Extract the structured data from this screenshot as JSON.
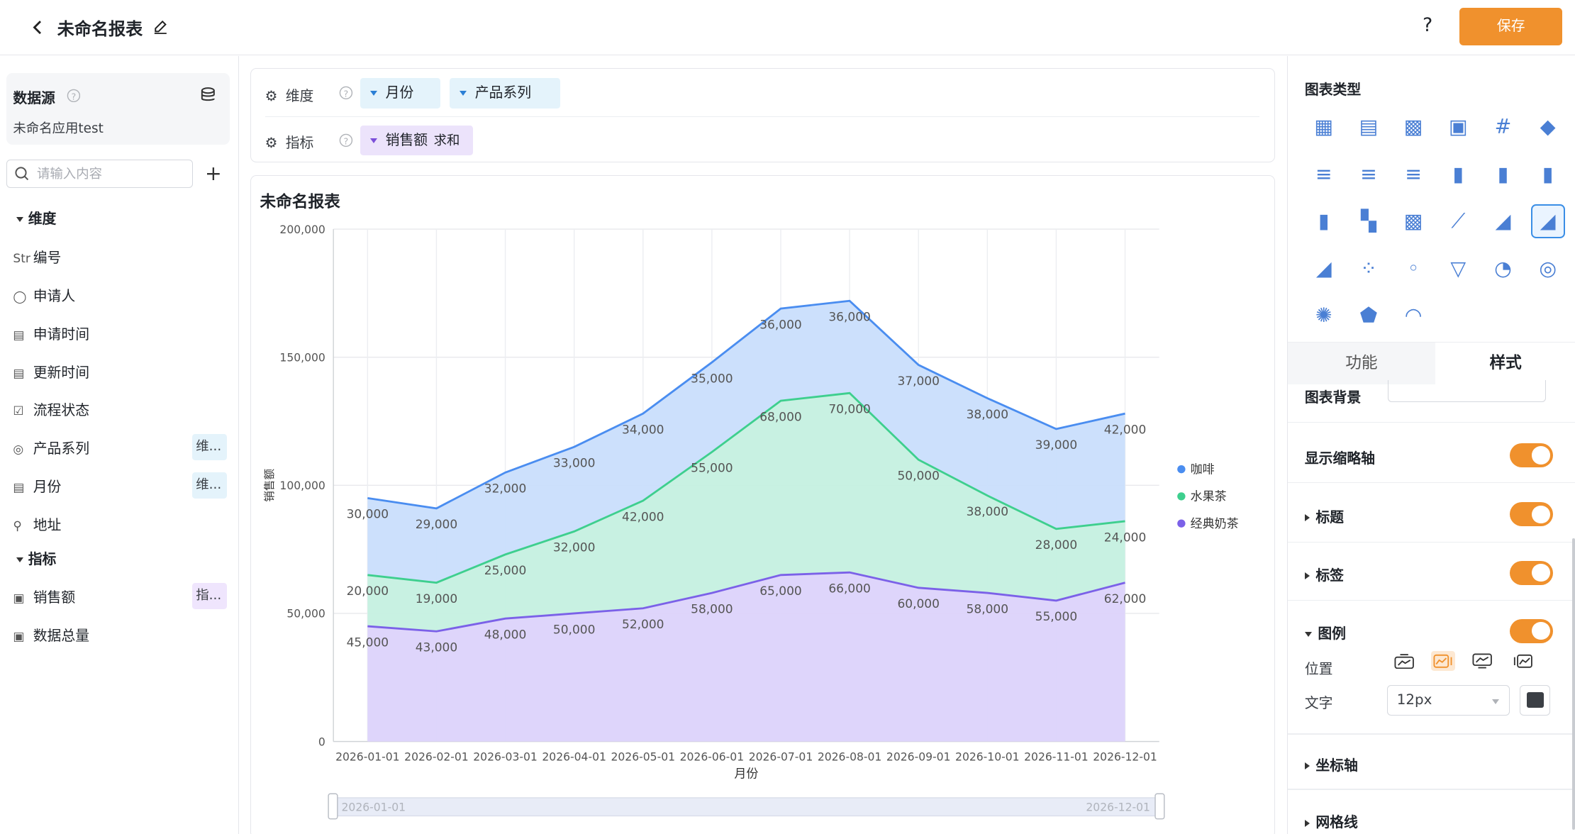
{
  "header": {
    "title": "未命名报表",
    "help_label": "?",
    "save_label": "保存"
  },
  "sidebar": {
    "datasource_title": "数据源",
    "datasource_name": "未命名应用test",
    "search_placeholder": "请输入内容",
    "add_label": "+",
    "dimension_group": "维度",
    "metric_group": "指标",
    "dimensions": [
      {
        "icon": "Str",
        "label": "编号",
        "tag": ""
      },
      {
        "icon": "person-icon",
        "label": "申请人",
        "tag": ""
      },
      {
        "icon": "calendar-icon",
        "label": "申请时间",
        "tag": ""
      },
      {
        "icon": "calendar-icon",
        "label": "更新时间",
        "tag": ""
      },
      {
        "icon": "checkbox-icon",
        "label": "流程状态",
        "tag": ""
      },
      {
        "icon": "target-icon",
        "label": "产品系列",
        "tag": "维..."
      },
      {
        "icon": "calendar-icon",
        "label": "月份",
        "tag": "维..."
      },
      {
        "icon": "location-icon",
        "label": "地址",
        "tag": ""
      }
    ],
    "metrics": [
      {
        "icon": "number-icon",
        "label": "销售额",
        "tag": "指..."
      },
      {
        "icon": "number-icon",
        "label": "数据总量",
        "tag": ""
      }
    ]
  },
  "config": {
    "dimension_label": "维度",
    "metric_label": "指标",
    "dimension_chips": [
      "月份",
      "产品系列"
    ],
    "metric_chips": [
      {
        "label": "销售额",
        "agg": "求和"
      }
    ]
  },
  "chart_card": {
    "title": "未命名报表"
  },
  "chart_data": {
    "type": "area",
    "stacked": true,
    "title": "未命名报表",
    "xlabel": "月份",
    "ylabel": "销售额",
    "ylim": [
      0,
      200000
    ],
    "y_ticks": [
      "0",
      "50,000",
      "100,000",
      "150,000",
      "200,000"
    ],
    "categories": [
      "2026-01-01",
      "2026-02-01",
      "2026-03-01",
      "2026-04-01",
      "2026-05-01",
      "2026-06-01",
      "2026-07-01",
      "2026-08-01",
      "2026-09-01",
      "2026-10-01",
      "2026-11-01",
      "2026-12-01"
    ],
    "series": [
      {
        "name": "经典奶茶",
        "color": "#7b61e8",
        "fill": "#dcd3fb",
        "values": [
          45000,
          43000,
          48000,
          50000,
          52000,
          58000,
          65000,
          66000,
          60000,
          58000,
          55000,
          62000
        ],
        "labels": [
          "45,000",
          "43,000",
          "48,000",
          "50,000",
          "52,000",
          "58,000",
          "65,000",
          "66,000",
          "60,000",
          "58,000",
          "55,000",
          "62,000"
        ]
      },
      {
        "name": "水果茶",
        "color": "#3ecf8e",
        "fill": "#c5f0e0",
        "values": [
          20000,
          19000,
          25000,
          32000,
          42000,
          55000,
          68000,
          70000,
          50000,
          38000,
          28000,
          24000
        ],
        "labels": [
          "20,000",
          "19,000",
          "25,000",
          "32,000",
          "42,000",
          "55,000",
          "68,000",
          "70,000",
          "50,000",
          "38,000",
          "28,000",
          "24,000"
        ]
      },
      {
        "name": "咖啡",
        "color": "#4a8df0",
        "fill": "#c9defc",
        "values": [
          30000,
          29000,
          32000,
          33000,
          34000,
          35000,
          36000,
          36000,
          37000,
          38000,
          39000,
          42000
        ],
        "labels": [
          "30,000",
          "29,000",
          "32,000",
          "33,000",
          "34,000",
          "35,000",
          "36,000",
          "36,000",
          "37,000",
          "38,000",
          "39,000",
          "42,000"
        ]
      }
    ],
    "legend_order": [
      "咖啡",
      "水果茶",
      "经典奶茶"
    ],
    "legend_position": "right",
    "grid": true,
    "zoom_range": [
      "2026-01-01",
      "2026-12-01"
    ]
  },
  "right_panel": {
    "chart_types_title": "图表类型",
    "tabs": [
      "功能",
      "样式"
    ],
    "active_tab": "样式",
    "style": {
      "background_label": "图表背景",
      "show_zoom_label": "显示缩略轴",
      "title_label": "标题",
      "labels_label": "标签",
      "legend_label": "图例",
      "position_label": "位置",
      "text_label": "文字",
      "font_size": "12px",
      "text_color": "#3b3f45",
      "axis_label": "坐标轴",
      "grid_label": "网格线"
    }
  },
  "colors": {
    "accent": "#f0912d",
    "selected": "#3a8ee6"
  }
}
